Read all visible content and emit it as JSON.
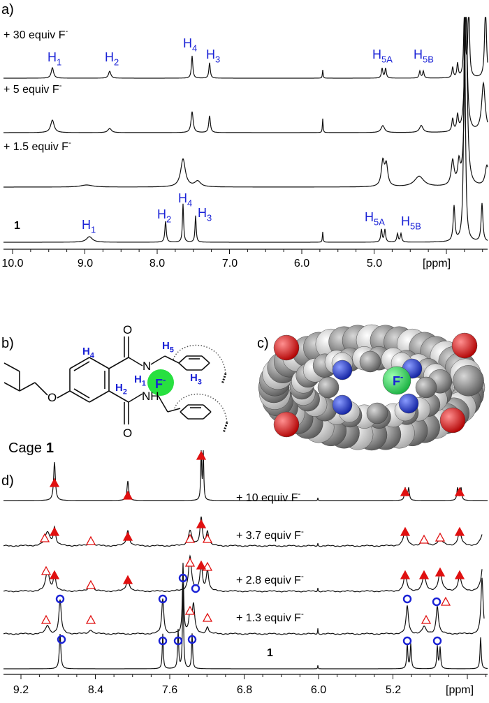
{
  "panel_a": {
    "label": "a)",
    "traces": [
      {
        "text": "+ 30 equiv F",
        "sup": "-"
      },
      {
        "text": "+ 5 equiv F",
        "sup": "-"
      },
      {
        "text": "+ 1.5 equiv F",
        "sup": "-"
      },
      {
        "text": "1"
      }
    ],
    "top_peaks": [
      {
        "base": "H",
        "sub": "1"
      },
      {
        "base": "H",
        "sub": "2"
      },
      {
        "base": "H",
        "sub": "4"
      },
      {
        "base": "H",
        "sub": "3"
      },
      {
        "base": "H",
        "sub": "5A"
      },
      {
        "base": "H",
        "sub": "5B"
      }
    ],
    "bottom_peaks": [
      {
        "base": "H",
        "sub": "1"
      },
      {
        "base": "H",
        "sub": "2"
      },
      {
        "base": "H",
        "sub": "4"
      },
      {
        "base": "H",
        "sub": "3"
      },
      {
        "base": "H",
        "sub": "5A"
      },
      {
        "base": "H",
        "sub": "5B"
      }
    ],
    "axis": {
      "ticks": [
        "10.0",
        "9.0",
        "8.0",
        "7.0",
        "6.0",
        "5.0"
      ],
      "unit": "[ppm]"
    }
  },
  "panel_b": {
    "label": "b)",
    "h5": {
      "base": "H",
      "sub": "5"
    },
    "h3": {
      "base": "H",
      "sub": "3"
    },
    "h4": {
      "base": "H",
      "sub": "4"
    },
    "h1": {
      "base": "H",
      "sub": "1"
    },
    "h2": {
      "base": "H",
      "sub": "2"
    },
    "fluoride": {
      "text": "F",
      "sup": "-"
    },
    "oxygen_top": "O",
    "nitrogen_top": "N",
    "oxygen_ether": "O",
    "oxygen_bottom": "O",
    "amide_bottom": "NH",
    "cage": {
      "text": "Cage",
      "number": "1"
    }
  },
  "panel_c": {
    "label": "c)",
    "fluoride": {
      "text": "F",
      "sup": "-"
    }
  },
  "panel_d": {
    "label": "d)",
    "traces": [
      {
        "text": "+ 10 equiv F",
        "sup": "-"
      },
      {
        "text": "+ 3.7 equiv F",
        "sup": "-"
      },
      {
        "text": "+ 2.8 equiv F",
        "sup": "-"
      },
      {
        "text": "+ 1.3 equiv F",
        "sup": "-"
      },
      {
        "text": "1"
      }
    ],
    "axis": {
      "ticks": [
        "9.2",
        "8.4",
        "7.6",
        "6.8",
        "6.0",
        "5.2"
      ],
      "unit": "[ppm]"
    }
  }
}
